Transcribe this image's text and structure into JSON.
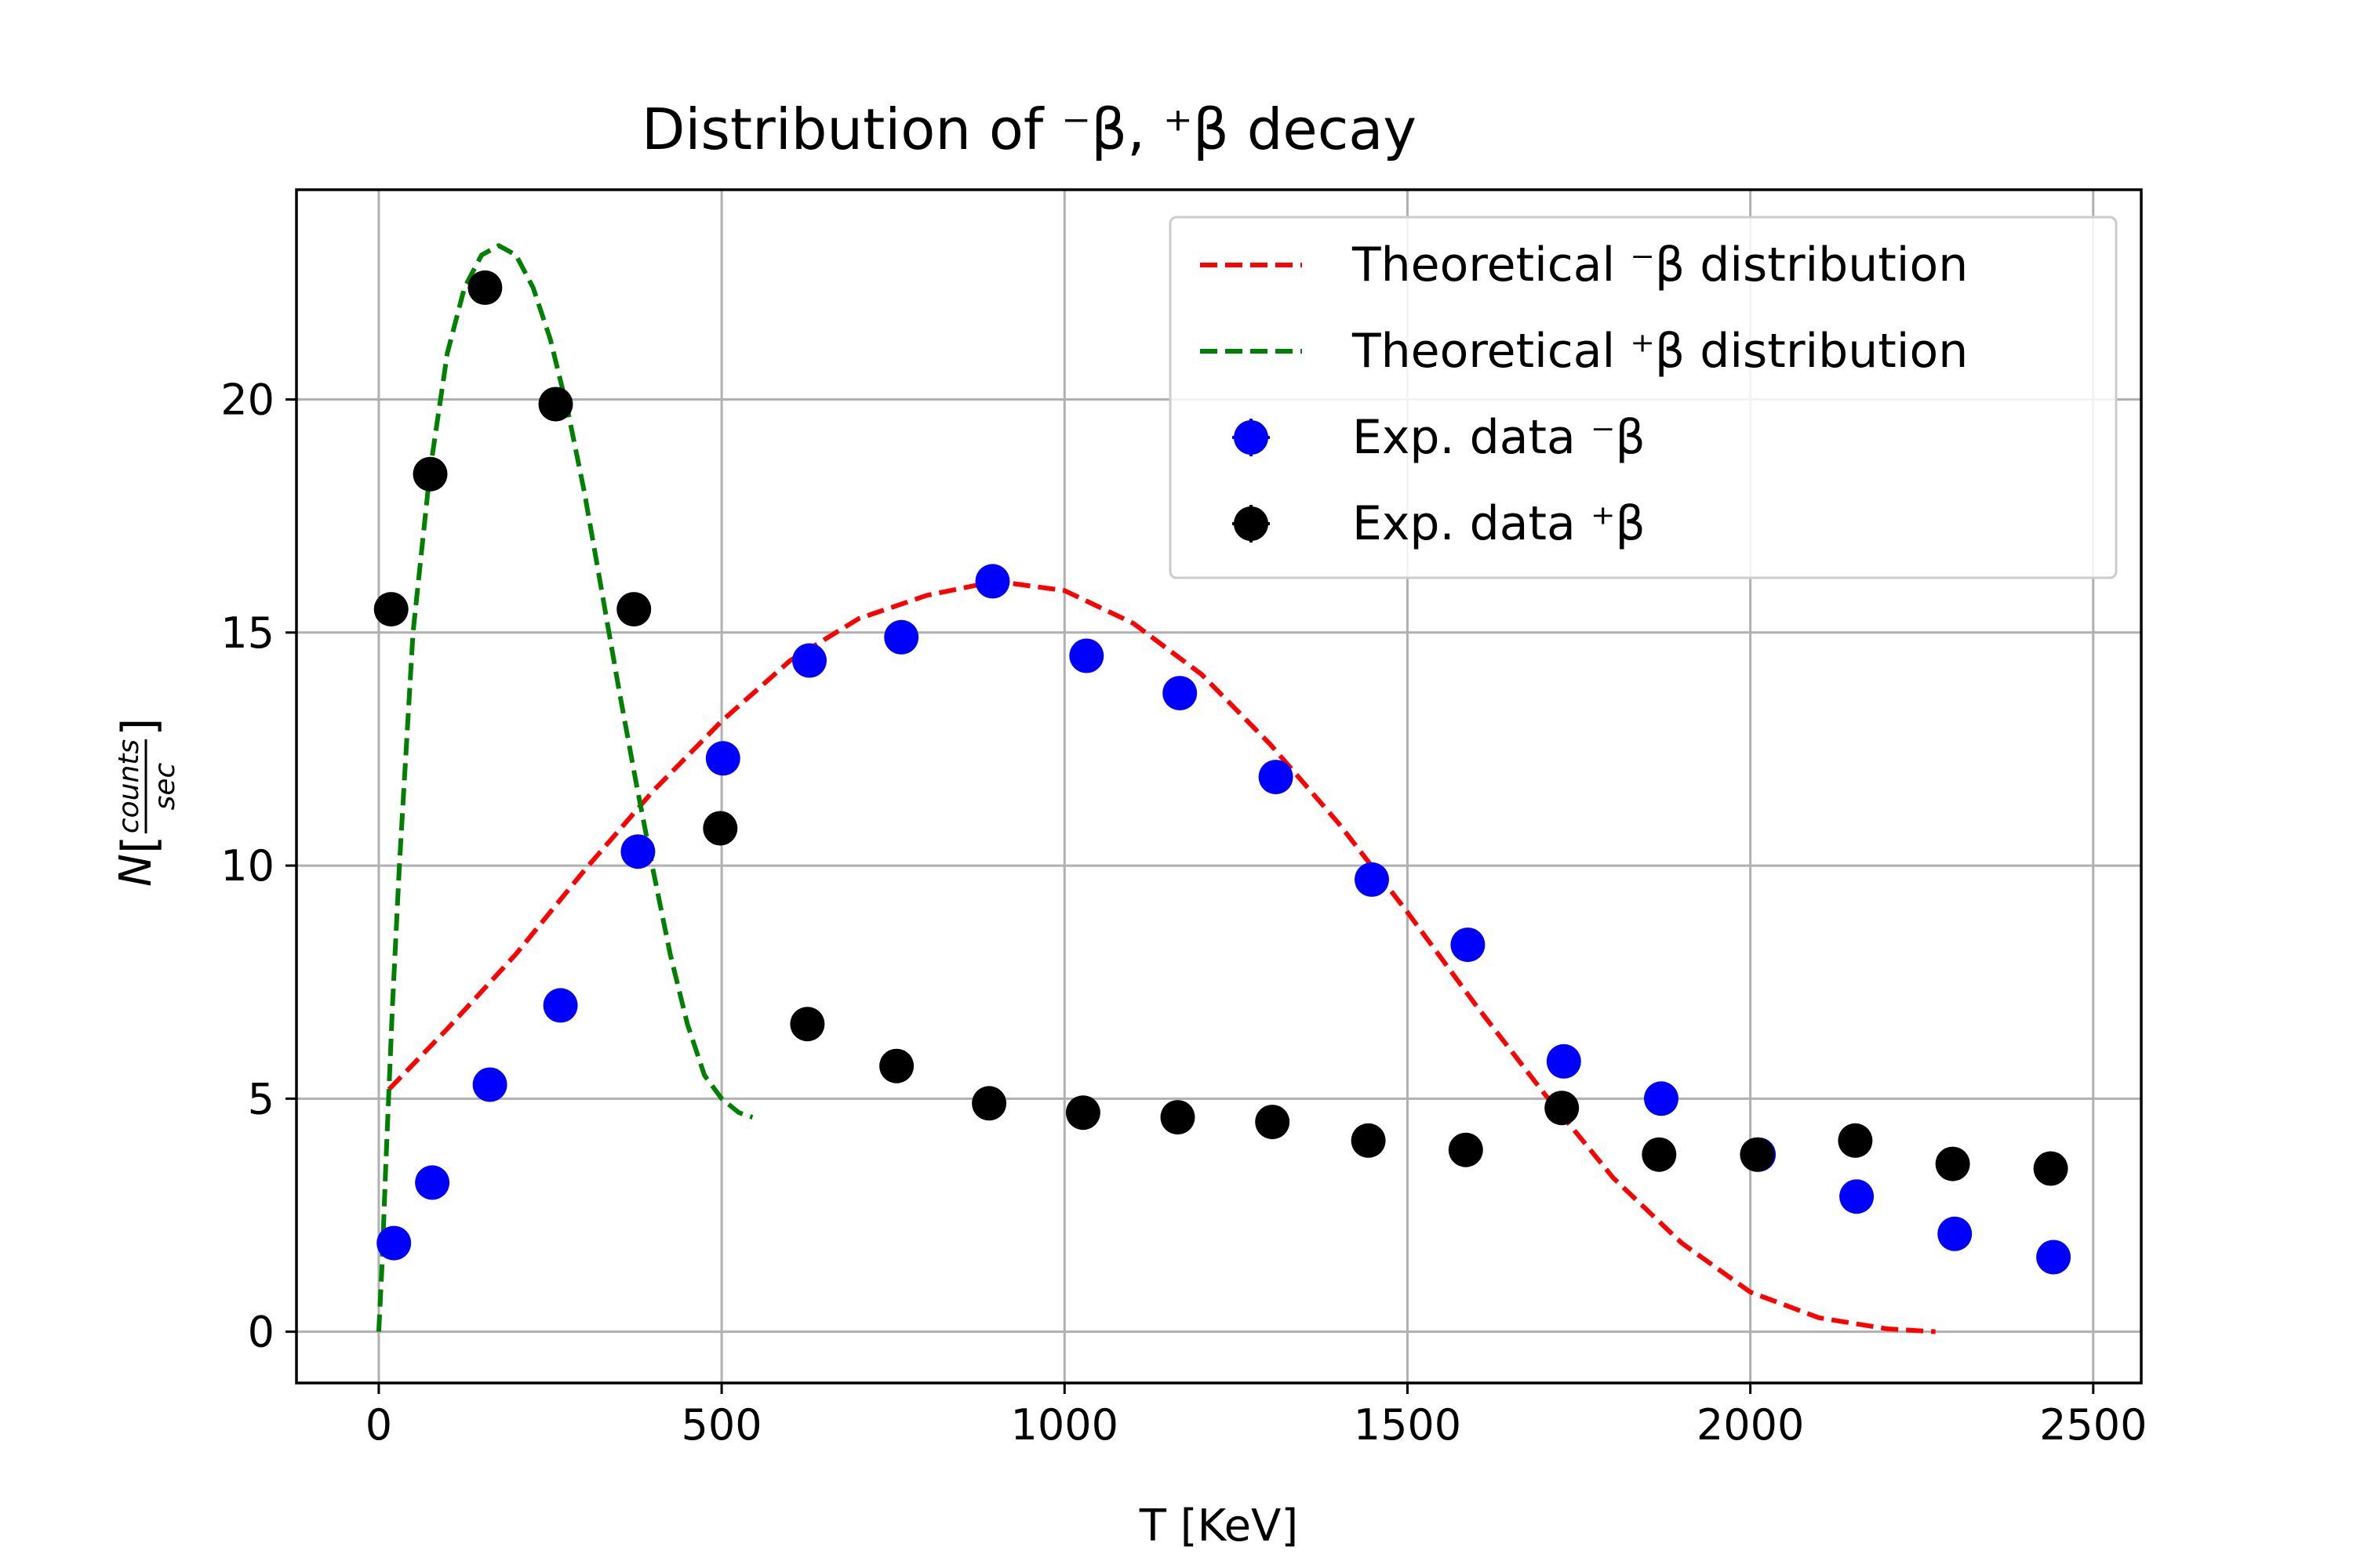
{
  "chart_data": {
    "type": "scatter",
    "title": "Distribution of ⁻β, ⁺β decay",
    "xlabel": "T [KeV]",
    "ylabel": "N[counts/sec]",
    "ylabel_parts": {
      "prefix": "N",
      "numerator": "counts",
      "denominator": "sec"
    },
    "xlim": [
      -120,
      2570
    ],
    "ylim": [
      -1.1,
      24.5
    ],
    "x_ticks": [
      0,
      500,
      1000,
      1500,
      2000,
      2500
    ],
    "x_tick_labels": [
      "0",
      "500",
      "1000",
      "1500",
      "2000",
      "2500"
    ],
    "y_ticks": [
      0,
      5,
      10,
      15,
      20
    ],
    "y_tick_labels": [
      "0",
      "5",
      "10",
      "15",
      "20"
    ],
    "grid": true,
    "legend_position": "top-right",
    "series": [
      {
        "name": "Theoretical ⁻β distribution",
        "kind": "line",
        "style": "dashed",
        "color": "#ff0000",
        "x": [
          15,
          100,
          200,
          300,
          400,
          500,
          600,
          700,
          800,
          900,
          1000,
          1100,
          1200,
          1300,
          1400,
          1500,
          1600,
          1700,
          1800,
          1900,
          2000,
          2100,
          2200,
          2270
        ],
        "y": [
          5.2,
          6.5,
          8.1,
          9.9,
          11.6,
          13.1,
          14.4,
          15.3,
          15.8,
          16.1,
          15.9,
          15.2,
          14.1,
          12.6,
          10.9,
          9.0,
          7.0,
          5.1,
          3.3,
          1.9,
          0.85,
          0.3,
          0.06,
          0.0
        ]
      },
      {
        "name": "Theoretical ⁺β distribution",
        "kind": "line",
        "style": "dashed",
        "color": "#008000",
        "x": [
          0,
          5,
          10,
          20,
          30,
          50,
          75,
          100,
          125,
          150,
          175,
          200,
          225,
          250,
          275,
          300,
          325,
          350,
          375,
          400,
          425,
          450,
          475,
          500,
          525,
          545
        ],
        "y": [
          0.0,
          1.5,
          3.5,
          7.0,
          10.0,
          15.0,
          18.5,
          21.0,
          22.4,
          23.1,
          23.3,
          23.1,
          22.4,
          21.3,
          19.8,
          18.0,
          15.9,
          13.8,
          11.8,
          9.9,
          8.1,
          6.6,
          5.5,
          5.0,
          4.7,
          4.6
        ]
      },
      {
        "name": "Exp. data ⁻β",
        "kind": "points",
        "color": "#0000ff",
        "x": [
          22,
          78,
          162,
          265,
          378,
          502,
          628,
          762,
          895,
          1032,
          1168,
          1308,
          1448,
          1588,
          1728,
          1870,
          2012,
          2155,
          2298,
          2442
        ],
        "y": [
          1.9,
          3.2,
          5.3,
          7.0,
          10.3,
          12.3,
          14.4,
          14.9,
          16.1,
          14.5,
          13.7,
          11.9,
          9.7,
          8.3,
          5.8,
          5.0,
          3.8,
          2.9,
          2.1,
          1.6
        ]
      },
      {
        "name": "Exp. data ⁺β",
        "kind": "points",
        "color": "#000000",
        "x": [
          18,
          75,
          155,
          258,
          372,
          498,
          625,
          755,
          890,
          1027,
          1165,
          1303,
          1443,
          1585,
          1725,
          1867,
          2010,
          2153,
          2295,
          2438
        ],
        "y": [
          15.5,
          18.4,
          22.4,
          19.9,
          15.5,
          10.8,
          6.6,
          5.7,
          4.9,
          4.7,
          4.6,
          4.5,
          4.1,
          3.9,
          4.8,
          3.8,
          3.8,
          4.1,
          3.6,
          3.5
        ]
      }
    ]
  }
}
